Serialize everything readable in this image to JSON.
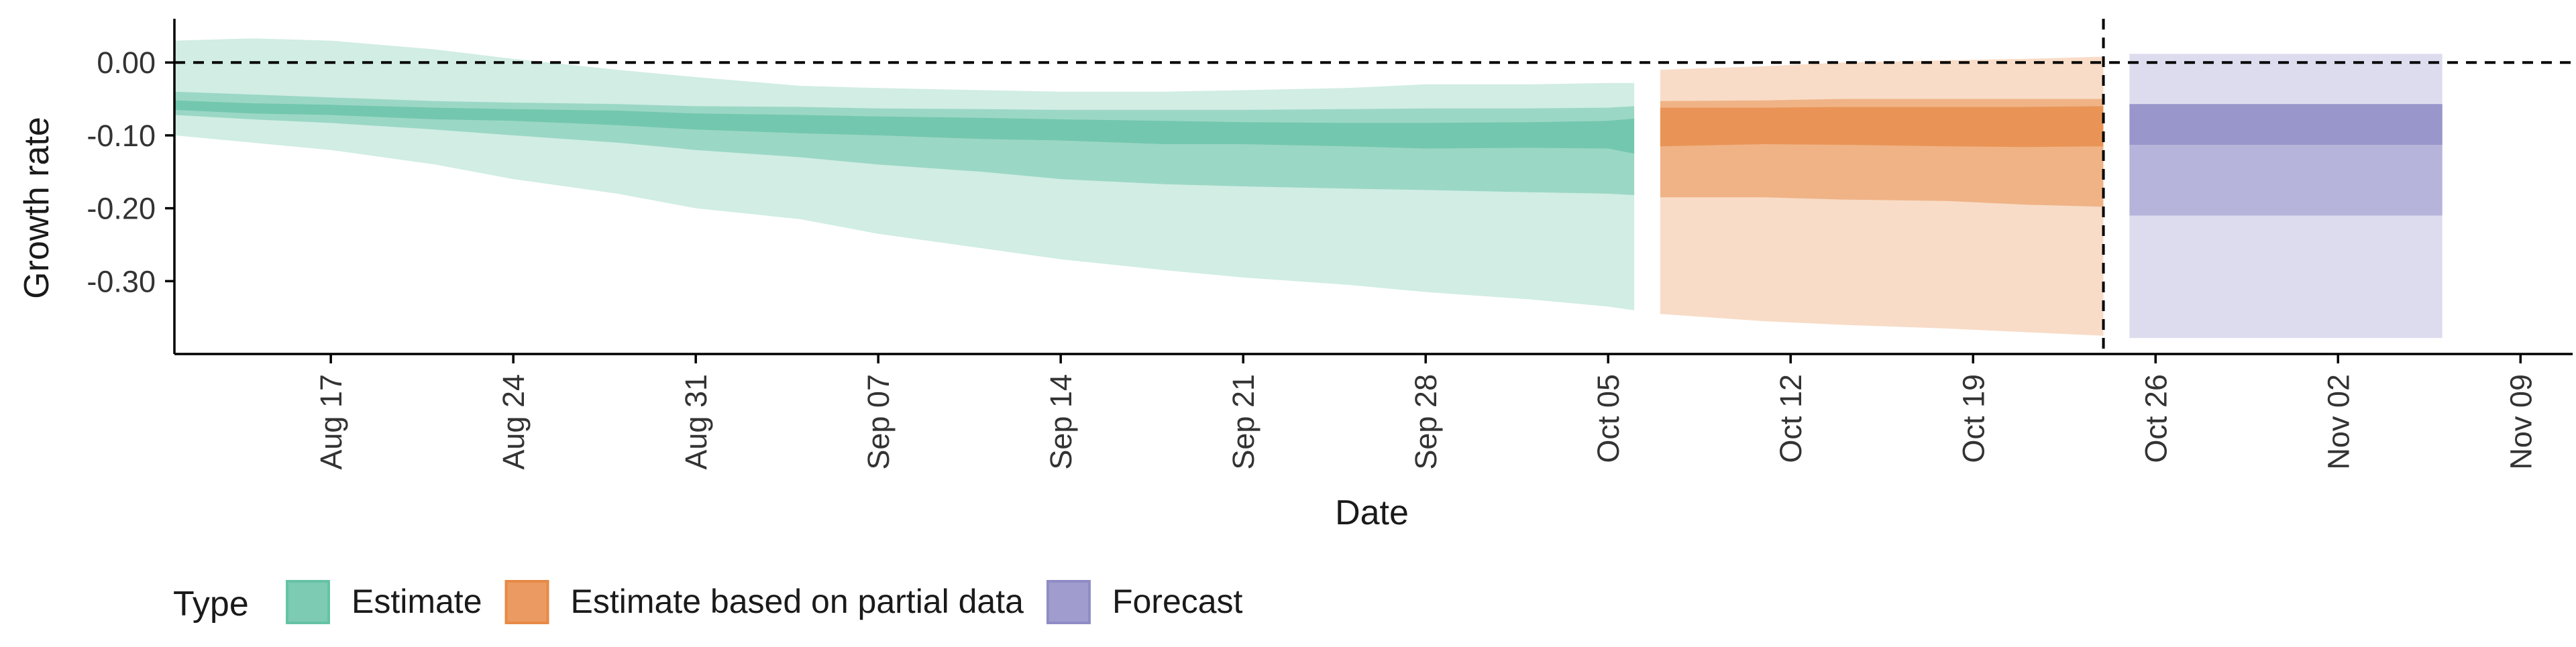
{
  "chart_data": {
    "type": "area",
    "xlabel": "Date",
    "ylabel": "Growth rate",
    "ylim": [
      -0.4,
      0.06
    ],
    "y_ticks": [
      0.0,
      -0.1,
      -0.2,
      -0.3
    ],
    "y_tick_labels": [
      "0.00",
      "-0.10",
      "-0.20",
      "-0.30"
    ],
    "x_ticks": [
      "2020-08-17",
      "2020-08-24",
      "2020-08-31",
      "2020-09-07",
      "2020-09-14",
      "2020-09-21",
      "2020-09-28",
      "2020-10-05",
      "2020-10-12",
      "2020-10-19",
      "2020-10-26",
      "2020-11-02",
      "2020-11-09"
    ],
    "x_tick_labels": [
      "Aug 17",
      "Aug 24",
      "Aug 31",
      "Sep 07",
      "Sep 14",
      "Sep 21",
      "Sep 28",
      "Oct 05",
      "Oct 12",
      "Oct 19",
      "Oct 26",
      "Nov 02",
      "Nov 09"
    ],
    "xlim": [
      "2020-08-11",
      "2020-11-11"
    ],
    "reference_line_y": 0.0,
    "vertical_line_x": "2020-10-24",
    "legend": {
      "title": "Type",
      "position": "bottom-left"
    },
    "colors": {
      "Estimate": "#66c2a5",
      "Estimate based on partial data": "#e78a46",
      "Forecast": "#8f8cc6"
    },
    "series": [
      {
        "name": "Estimate",
        "x": [
          "2020-08-11",
          "2020-08-14",
          "2020-08-17",
          "2020-08-21",
          "2020-08-24",
          "2020-08-28",
          "2020-08-31",
          "2020-09-04",
          "2020-09-07",
          "2020-09-11",
          "2020-09-14",
          "2020-09-18",
          "2020-09-21",
          "2020-09-25",
          "2020-09-28",
          "2020-10-02",
          "2020-10-05",
          "2020-10-06"
        ],
        "median": [
          -0.06,
          -0.063,
          -0.066,
          -0.07,
          -0.072,
          -0.076,
          -0.08,
          -0.085,
          -0.087,
          -0.09,
          -0.092,
          -0.095,
          -0.097,
          -0.099,
          -0.1,
          -0.1,
          -0.102,
          -0.103
        ],
        "lower_20": [
          -0.065,
          -0.07,
          -0.072,
          -0.078,
          -0.08,
          -0.086,
          -0.092,
          -0.097,
          -0.1,
          -0.105,
          -0.107,
          -0.112,
          -0.112,
          -0.115,
          -0.118,
          -0.117,
          -0.118,
          -0.125
        ],
        "upper_20": [
          -0.052,
          -0.056,
          -0.058,
          -0.062,
          -0.064,
          -0.066,
          -0.07,
          -0.072,
          -0.074,
          -0.076,
          -0.078,
          -0.08,
          -0.082,
          -0.083,
          -0.083,
          -0.082,
          -0.08,
          -0.077
        ],
        "lower_50": [
          -0.072,
          -0.078,
          -0.083,
          -0.092,
          -0.1,
          -0.11,
          -0.12,
          -0.13,
          -0.14,
          -0.15,
          -0.16,
          -0.167,
          -0.17,
          -0.173,
          -0.175,
          -0.178,
          -0.18,
          -0.182
        ],
        "upper_50": [
          -0.04,
          -0.044,
          -0.048,
          -0.053,
          -0.055,
          -0.057,
          -0.06,
          -0.061,
          -0.063,
          -0.064,
          -0.065,
          -0.065,
          -0.065,
          -0.064,
          -0.063,
          -0.063,
          -0.062,
          -0.06
        ],
        "lower_90": [
          -0.1,
          -0.11,
          -0.12,
          -0.14,
          -0.16,
          -0.18,
          -0.2,
          -0.215,
          -0.235,
          -0.255,
          -0.27,
          -0.285,
          -0.295,
          -0.305,
          -0.315,
          -0.325,
          -0.335,
          -0.34
        ],
        "upper_90": [
          0.03,
          0.033,
          0.03,
          0.018,
          0.005,
          -0.01,
          -0.02,
          -0.032,
          -0.035,
          -0.038,
          -0.04,
          -0.04,
          -0.038,
          -0.035,
          -0.03,
          -0.03,
          -0.028,
          -0.028
        ]
      },
      {
        "name": "Estimate based on partial data",
        "x": [
          "2020-10-07",
          "2020-10-11",
          "2020-10-14",
          "2020-10-18",
          "2020-10-21",
          "2020-10-24"
        ],
        "median": [
          -0.09,
          -0.09,
          -0.088,
          -0.088,
          -0.086,
          -0.086
        ],
        "lower_20": [
          -0.115,
          -0.112,
          -0.113,
          -0.115,
          -0.116,
          -0.115
        ],
        "upper_20": [
          -0.062,
          -0.062,
          -0.061,
          -0.061,
          -0.061,
          -0.06
        ],
        "lower_50": [
          -0.185,
          -0.185,
          -0.188,
          -0.19,
          -0.195,
          -0.198
        ],
        "upper_50": [
          -0.053,
          -0.052,
          -0.05,
          -0.05,
          -0.05,
          -0.05
        ],
        "lower_90": [
          -0.345,
          -0.355,
          -0.36,
          -0.365,
          -0.37,
          -0.375
        ],
        "upper_90": [
          -0.01,
          -0.005,
          0.0,
          0.003,
          0.005,
          0.008
        ]
      },
      {
        "name": "Forecast",
        "x": [
          "2020-10-25",
          "2020-11-06"
        ],
        "median": [
          -0.085,
          -0.085
        ],
        "lower_20": [
          -0.113,
          -0.113
        ],
        "upper_20": [
          -0.057,
          -0.057
        ],
        "lower_50": [
          -0.21,
          -0.21
        ],
        "upper_50": [
          -0.057,
          -0.057
        ],
        "lower_90": [
          -0.378,
          -0.378
        ],
        "upper_90": [
          0.012,
          0.012
        ]
      }
    ]
  }
}
